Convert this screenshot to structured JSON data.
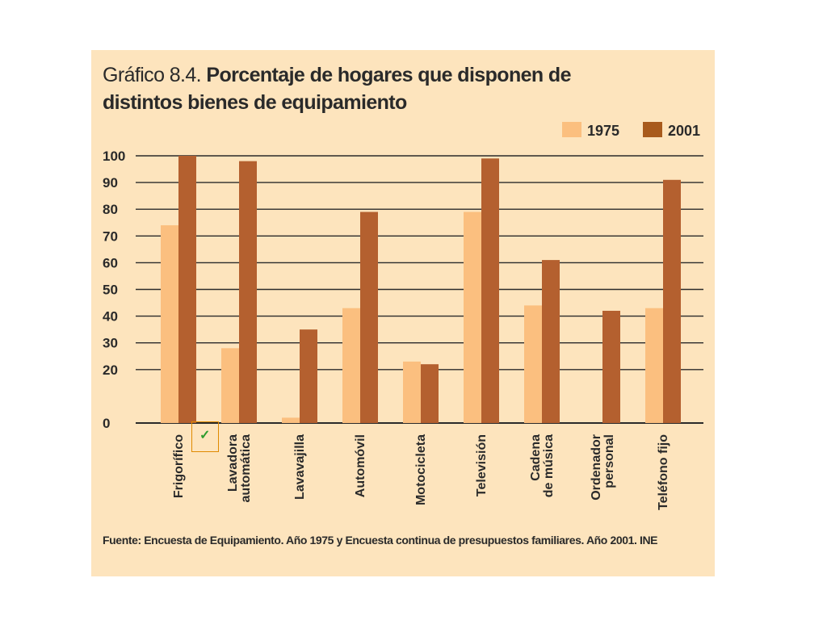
{
  "title": {
    "prefix": "Gráfico 8.4.",
    "line1_bold": "Porcentaje de hogares  que disponen de",
    "line2_bold": "distintos bienes de equipamiento"
  },
  "source_note": "Fuente: Encuesta de Equipamiento. Año 1975 y Encuesta continua de presupuestos familiares. Año 2001. INE",
  "colors": {
    "panel_background": "#fde4bd",
    "series_1975": "#fbbf7f",
    "series_2001": "#b4602f",
    "legend_2001": "#a85a1c",
    "gridline": "#2a2a2a"
  },
  "chart_data": {
    "type": "bar",
    "title": "Porcentaje de hogares  que disponen de distintos bienes de equipamiento",
    "xlabel": "",
    "ylabel": "",
    "ylim": [
      0,
      100
    ],
    "yticks": [
      0,
      20,
      30,
      40,
      50,
      60,
      70,
      80,
      90,
      100
    ],
    "grid": true,
    "legend_position": "top-right",
    "categories": [
      [
        "Frigorífico"
      ],
      [
        "Lavadora",
        "automática"
      ],
      [
        "Lavavajilla"
      ],
      [
        "Automóvil"
      ],
      [
        "Motocicleta"
      ],
      [
        "Televisión"
      ],
      [
        "Cadena",
        "de música"
      ],
      [
        "Ordenador",
        "personal"
      ],
      [
        "Teléfono fijo"
      ]
    ],
    "series": [
      {
        "name": "1975",
        "values": [
          74,
          28,
          2,
          43,
          23,
          79,
          44,
          0,
          43
        ]
      },
      {
        "name": "2001",
        "values": [
          100,
          98,
          35,
          79,
          22,
          99,
          61,
          42,
          91
        ]
      }
    ]
  }
}
